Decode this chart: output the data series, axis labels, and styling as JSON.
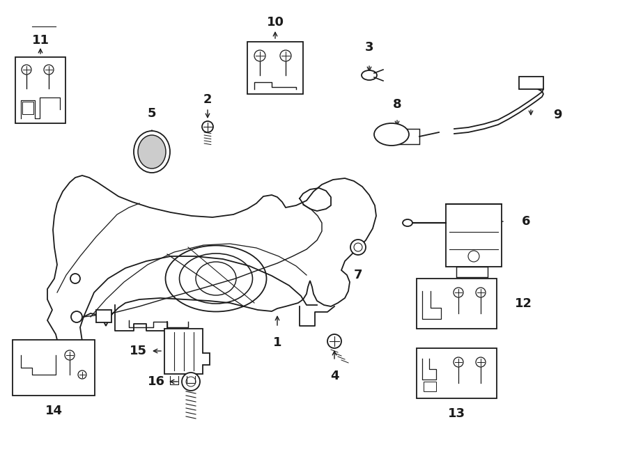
{
  "background": "#ffffff",
  "line_color": "#1a1a1a",
  "lw": 1.3,
  "figsize": [
    9.0,
    6.62
  ],
  "dpi": 100
}
